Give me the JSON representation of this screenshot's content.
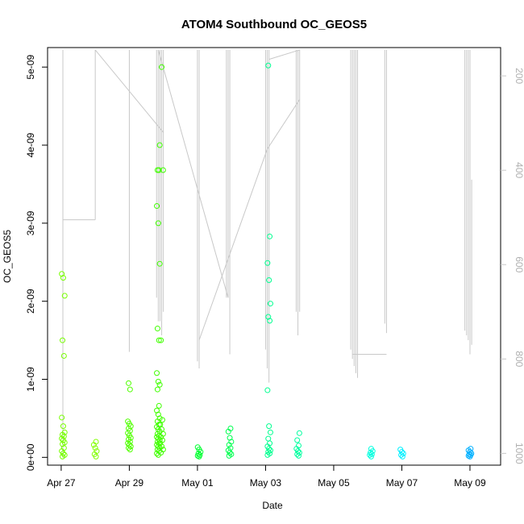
{
  "chart_data": {
    "type": "scatter",
    "title": "ATOM4 Southbound OC_GEOS5",
    "xlabel": "Date",
    "ylabel": "OC_GEOS5",
    "x_ticks": [
      "Apr 27",
      "Apr 29",
      "May 01",
      "May 03",
      "May 05",
      "May 07",
      "May 09"
    ],
    "x_tick_days": [
      0,
      2,
      4,
      6,
      8,
      10,
      12
    ],
    "x_range_days": [
      -0.4,
      12.9
    ],
    "y_ticks": [
      "0e+00",
      "1e-09",
      "2e-09",
      "3e-09",
      "4e-09",
      "5e-09"
    ],
    "y_tick_values": [
      0,
      1e-09,
      2e-09,
      3e-09,
      4e-09,
      5e-09
    ],
    "ylim": [
      -1e-10,
      5.25e-09
    ],
    "y2_ticks": [
      "200",
      "400",
      "600",
      "800",
      "1000"
    ],
    "y2_tick_values": [
      200,
      400,
      600,
      800,
      1000
    ],
    "y2lim": [
      1025,
      140
    ],
    "pressure_color": "#c8c8c8",
    "marker_colors": [
      "#80ff00",
      "#00ff40",
      "#00ffbf",
      "#00bfff"
    ],
    "clusters": [
      {
        "day": 0.06,
        "color": "#77ff00",
        "values": [
          2.35e-09,
          2.3e-09,
          2.07e-09,
          1.5e-09,
          1.3e-09,
          5.1e-10,
          4e-10,
          3.2e-10,
          2.9e-10,
          2.7e-10,
          2.4e-10,
          2.2e-10,
          1.9e-10,
          1.7e-10,
          1.2e-10,
          8e-11,
          5e-11,
          3e-11,
          1e-11
        ]
      },
      {
        "day": 1.0,
        "color": "#80ff00",
        "values": [
          2e-10,
          1.6e-10,
          1.2e-10,
          8e-11,
          4e-11,
          1e-11
        ]
      },
      {
        "day": 2.0,
        "color": "#50ff00",
        "values": [
          9.5e-10,
          8.7e-10,
          4.6e-10,
          4.3e-10,
          4e-10,
          3.7e-10,
          3.4e-10,
          3.1e-10,
          2.8e-10,
          2.5e-10,
          2.3e-10,
          2e-10,
          1.8e-10,
          1.6e-10,
          1.4e-10,
          1.2e-10,
          1e-10
        ]
      },
      {
        "day": 2.85,
        "color": "#40ff00",
        "values": [
          4e-09,
          3.68e-09,
          3.68e-09,
          3.22e-09,
          3e-09,
          2.48e-09,
          1.65e-09,
          1.5e-09,
          1.08e-09,
          9.7e-10,
          9.3e-10,
          8.7e-10,
          6.6e-10,
          6e-10,
          5.5e-10,
          5e-10,
          4.6e-10,
          4.2e-10,
          3.9e-10,
          3.6e-10,
          3.3e-10,
          3e-10,
          2.8e-10,
          2.6e-10,
          2.4e-10,
          2.2e-10,
          2e-10,
          1.8e-10,
          1.6e-10,
          1.4e-10,
          1.2e-10,
          1e-10,
          8e-11,
          5e-11,
          3e-11
        ]
      },
      {
        "day": 2.95,
        "color": "#40ff00",
        "values": [
          5e-09,
          3.68e-09,
          1.5e-09,
          4.8e-10,
          4.2e-10,
          3.6e-10,
          3e-10,
          2.6e-10,
          2.2e-10,
          1.8e-10,
          1.4e-10,
          1e-10,
          6e-11
        ]
      },
      {
        "day": 4.05,
        "color": "#00ff30",
        "values": [
          1.3e-10,
          1e-10,
          7e-11,
          5e-11,
          3e-11,
          2e-11,
          1e-11
        ]
      },
      {
        "day": 4.95,
        "color": "#00ff50",
        "values": [
          3.7e-10,
          3.3e-10,
          2.5e-10,
          2e-10,
          1.6e-10,
          1.2e-10,
          9e-11,
          6e-11,
          4e-11,
          2e-11
        ]
      },
      {
        "day": 6.1,
        "color": "#00ff90",
        "values": [
          5.02e-09,
          2.83e-09,
          2.49e-09,
          2.27e-09,
          1.97e-09,
          1.8e-09,
          1.75e-09,
          8.6e-10,
          4e-10,
          3.2e-10,
          2.4e-10,
          1.8e-10,
          1.4e-10,
          1.1e-10,
          9e-11,
          7e-11,
          5e-11,
          3e-11
        ]
      },
      {
        "day": 6.95,
        "color": "#00ffa0",
        "values": [
          3.1e-10,
          2.2e-10,
          1.5e-10,
          1.1e-10,
          8e-11,
          6e-11,
          4e-11,
          2e-11
        ]
      },
      {
        "day": 9.1,
        "color": "#00ffdf",
        "values": [
          1.1e-10,
          8e-11,
          6e-11,
          4e-11,
          3e-11,
          1e-11
        ]
      },
      {
        "day": 10.0,
        "color": "#00f0ff",
        "values": [
          1e-10,
          7e-11,
          5e-11,
          3e-11,
          1e-11
        ]
      },
      {
        "day": 12.0,
        "color": "#00b0ff",
        "values": [
          1.1e-10,
          9e-11,
          7e-11,
          5e-11,
          4e-11,
          3e-11,
          2e-11,
          1e-11
        ]
      }
    ],
    "pressure_profiles": [
      {
        "day": 0.05,
        "from": 145,
        "to": 1010
      },
      {
        "day": 1.0,
        "from": 145,
        "to": 505
      },
      {
        "day": 2.0,
        "from": 145,
        "to": 785
      },
      {
        "day": 2.8,
        "from": 145,
        "to": 670
      },
      {
        "day": 2.85,
        "from": 145,
        "to": 720
      },
      {
        "day": 2.9,
        "from": 145,
        "to": 720
      },
      {
        "day": 2.95,
        "from": 145,
        "to": 750
      },
      {
        "day": 3.0,
        "from": 145,
        "to": 700
      },
      {
        "day": 4.0,
        "from": 145,
        "to": 805
      },
      {
        "day": 4.05,
        "from": 145,
        "to": 820
      },
      {
        "day": 4.85,
        "from": 145,
        "to": 670
      },
      {
        "day": 4.9,
        "from": 145,
        "to": 670
      },
      {
        "day": 4.95,
        "from": 145,
        "to": 790
      },
      {
        "day": 6.0,
        "from": 145,
        "to": 780
      },
      {
        "day": 6.05,
        "from": 145,
        "to": 820
      },
      {
        "day": 6.1,
        "from": 145,
        "to": 850
      },
      {
        "day": 6.9,
        "from": 145,
        "to": 700
      },
      {
        "day": 6.95,
        "from": 145,
        "to": 750
      },
      {
        "day": 7.0,
        "from": 145,
        "to": 700
      },
      {
        "day": 8.5,
        "from": 145,
        "to": 780
      },
      {
        "day": 8.55,
        "from": 145,
        "to": 800
      },
      {
        "day": 8.6,
        "from": 145,
        "to": 815
      },
      {
        "day": 8.65,
        "from": 145,
        "to": 830
      },
      {
        "day": 8.7,
        "from": 145,
        "to": 840
      },
      {
        "day": 9.5,
        "from": 145,
        "to": 725
      },
      {
        "day": 9.55,
        "from": 145,
        "to": 745
      },
      {
        "day": 11.85,
        "from": 145,
        "to": 740
      },
      {
        "day": 11.9,
        "from": 145,
        "to": 750
      },
      {
        "day": 11.95,
        "from": 145,
        "to": 760
      },
      {
        "day": 12.0,
        "from": 145,
        "to": 790
      },
      {
        "day": 12.05,
        "from": 420,
        "to": 770
      }
    ],
    "pressure_connectors": [
      [
        [
          0.05,
          505
        ],
        [
          1.0,
          505
        ]
      ],
      [
        [
          1.0,
          145
        ],
        [
          3.0,
          320
        ]
      ],
      [
        [
          2.85,
          145
        ],
        [
          4.9,
          670
        ]
      ],
      [
        [
          4.05,
          760
        ],
        [
          6.05,
          355
        ]
      ],
      [
        [
          6.05,
          355
        ],
        [
          7.0,
          250
        ]
      ],
      [
        [
          6.1,
          165
        ],
        [
          7.0,
          145
        ]
      ],
      [
        [
          8.55,
          790
        ],
        [
          9.55,
          790
        ]
      ]
    ]
  }
}
